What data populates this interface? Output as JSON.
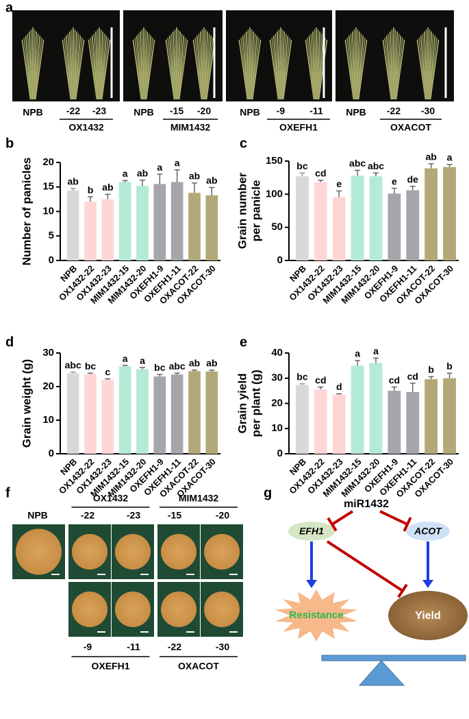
{
  "panel_labels": [
    "a",
    "b",
    "c",
    "d",
    "e",
    "f",
    "g"
  ],
  "panel_a": {
    "groups": [
      {
        "control": "NPB",
        "lines": [
          "-22",
          "-23"
        ],
        "name": "OX1432"
      },
      {
        "control": "NPB",
        "lines": [
          "-15",
          "-20"
        ],
        "name": "MIM1432"
      },
      {
        "control": "NPB",
        "lines": [
          "-9",
          "-11"
        ],
        "name": "OXEFH1"
      },
      {
        "control": "NPB",
        "lines": [
          "-22",
          "-30"
        ],
        "name": "OXACOT"
      }
    ]
  },
  "chart_data": [
    {
      "type": "bar",
      "ylabel": [
        "Number of panicles"
      ],
      "categories": [
        "NPB",
        "OX1432-22",
        "OX1432-23",
        "MIM1432-15",
        "MIM1432-20",
        "OXEFH1-9",
        "OXEFH1-11",
        "OXACOT-22",
        "OXACOT-30"
      ],
      "values": [
        14.3,
        12,
        12.5,
        16,
        15.2,
        15.6,
        16,
        13.8,
        13.3
      ],
      "errors": [
        0.4,
        1,
        1,
        0.3,
        1.2,
        2,
        2.5,
        2,
        1.6
      ],
      "annotations": [
        "ab",
        "b",
        "ab",
        "a",
        "ab",
        "a",
        "a",
        "ab",
        "ab"
      ],
      "colors": [
        "#d9d9d9",
        "#ffd6d6",
        "#ffd6d6",
        "#b4ead6",
        "#b4ead6",
        "#a5a5ab",
        "#a5a5ab",
        "#b3a978",
        "#b3a978"
      ],
      "ylim": [
        0,
        20
      ],
      "yticks": [
        0,
        5,
        10,
        15,
        20
      ]
    },
    {
      "type": "bar",
      "ylabel": [
        "Grain number",
        "per panicle"
      ],
      "categories": [
        "NPB",
        "OX1432-22",
        "OX1432-23",
        "MIM1432-15",
        "MIM1432-20",
        "OXEFH1-9",
        "OXEFH1-11",
        "OXACOT-22",
        "OXACOT-30"
      ],
      "values": [
        127,
        118,
        96,
        128,
        127,
        101,
        106,
        139,
        141
      ],
      "errors": [
        5,
        3,
        9,
        8,
        5,
        8,
        6,
        7,
        4
      ],
      "annotations": [
        "bc",
        "cd",
        "e",
        "abc",
        "abc",
        "e",
        "de",
        "ab",
        "a"
      ],
      "colors": [
        "#d9d9d9",
        "#ffd6d6",
        "#ffd6d6",
        "#b4ead6",
        "#b4ead6",
        "#a5a5ab",
        "#a5a5ab",
        "#b3a978",
        "#b3a978"
      ],
      "ylim": [
        0,
        150
      ],
      "yticks": [
        0,
        50,
        100,
        150
      ]
    },
    {
      "type": "bar",
      "ylabel": [
        "Grain weight (g)"
      ],
      "categories": [
        "NPB",
        "OX1432-22",
        "OX1432-23",
        "MIM1432-15",
        "MIM1432-20",
        "OXEFH1-9",
        "OXEFH1-11",
        "OXACOT-22",
        "OXACOT-30"
      ],
      "values": [
        24,
        23.7,
        22,
        26,
        25.2,
        23,
        23.6,
        24.6,
        24.5
      ],
      "errors": [
        0.3,
        0.3,
        0.3,
        0.3,
        0.5,
        0.6,
        0.4,
        0.3,
        0.4
      ],
      "annotations": [
        "abc",
        "bc",
        "c",
        "a",
        "a",
        "bc",
        "abc",
        "ab",
        "ab"
      ],
      "colors": [
        "#d9d9d9",
        "#ffd6d6",
        "#ffd6d6",
        "#b4ead6",
        "#b4ead6",
        "#a5a5ab",
        "#a5a5ab",
        "#b3a978",
        "#b3a978"
      ],
      "ylim": [
        0,
        30
      ],
      "yticks": [
        0,
        10,
        20,
        30
      ]
    },
    {
      "type": "bar",
      "ylabel": [
        "Grain yield",
        "per plant (g)"
      ],
      "categories": [
        "NPB",
        "OX1432-22",
        "OX1432-23",
        "MIM1432-15",
        "MIM1432-20",
        "OXEFH1-9",
        "OXEFH1-11",
        "OXACOT-22",
        "OXACOT-30"
      ],
      "values": [
        27.3,
        25.5,
        23.5,
        35,
        36,
        25,
        24.5,
        29.6,
        30
      ],
      "errors": [
        0.5,
        1,
        0.3,
        2,
        2,
        1.5,
        3.5,
        1,
        2
      ],
      "annotations": [
        "bc",
        "cd",
        "d",
        "a",
        "a",
        "cd",
        "cd",
        "b",
        "b"
      ],
      "colors": [
        "#d9d9d9",
        "#ffd6d6",
        "#ffd6d6",
        "#b4ead6",
        "#b4ead6",
        "#a5a5ab",
        "#a5a5ab",
        "#b3a978",
        "#b3a978"
      ],
      "ylim": [
        0,
        40
      ],
      "yticks": [
        0,
        10,
        20,
        30,
        40
      ]
    }
  ],
  "panel_f": {
    "control": "NPB",
    "groups": [
      {
        "name": "OX1432",
        "lines": [
          "-22",
          "-23"
        ]
      },
      {
        "name": "MIM1432",
        "lines": [
          "-15",
          "-20"
        ]
      },
      {
        "name": "OXEFH1",
        "lines": [
          "-9",
          "-11"
        ]
      },
      {
        "name": "OXACOT",
        "lines": [
          "-22",
          "-30"
        ]
      }
    ]
  },
  "panel_g": {
    "regulator": "miR1432",
    "targets": [
      "EFH1",
      "ACOT"
    ],
    "outcomes": [
      "Resistance",
      "Yield"
    ]
  }
}
